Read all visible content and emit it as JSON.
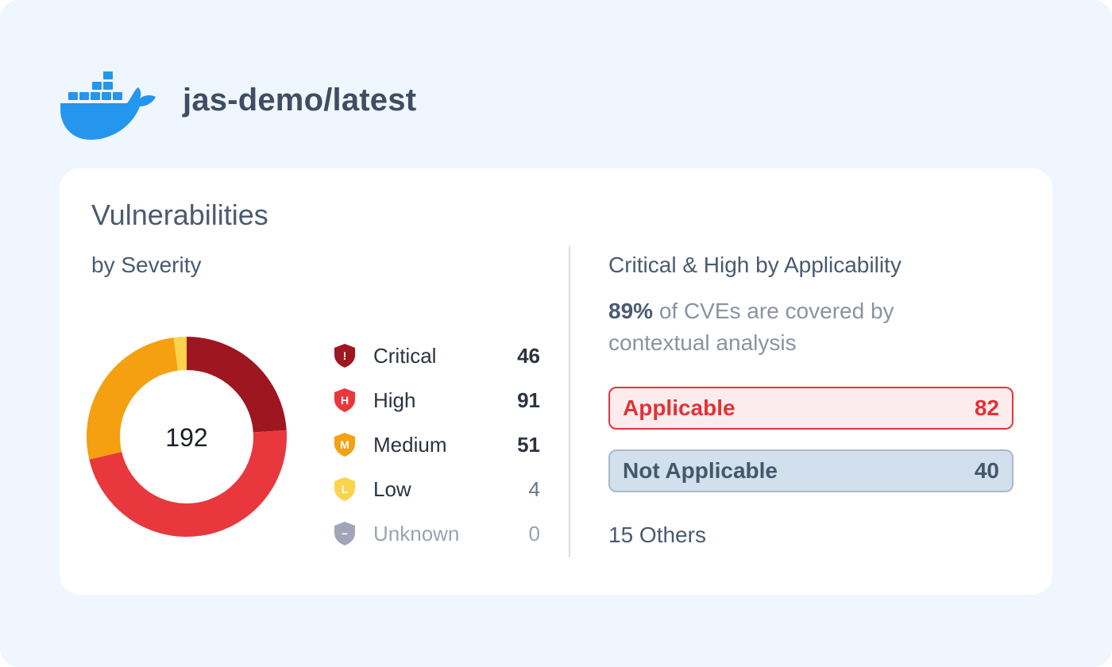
{
  "header": {
    "logo_icon": "docker-whale-icon",
    "repo_title": "jas-demo/latest"
  },
  "card": {
    "title": "Vulnerabilities",
    "left_subtitle": "by Severity",
    "total": "192",
    "severities": [
      {
        "label": "Critical",
        "count": "46",
        "color": "#9e1620",
        "icon": "shield-exclamation-icon",
        "glyph": "!"
      },
      {
        "label": "High",
        "count": "91",
        "color": "#e8383d",
        "icon": "shield-h-icon",
        "glyph": "H"
      },
      {
        "label": "Medium",
        "count": "51",
        "color": "#f4a011",
        "icon": "shield-m-icon",
        "glyph": "M"
      },
      {
        "label": "Low",
        "count": "4",
        "color": "#fbd44b",
        "icon": "shield-l-icon",
        "glyph": "L"
      },
      {
        "label": "Unknown",
        "count": "0",
        "color": "#a0a6b8",
        "icon": "shield-minus-icon",
        "glyph": "−"
      }
    ],
    "right_subtitle": "Critical &  High by Applicability",
    "coverage": {
      "percent": "89%",
      "text": " of CVEs are covered by contextual analysis"
    },
    "applicable": {
      "label": "Applicable",
      "count": "82"
    },
    "not_applicable": {
      "label": "Not Applicable",
      "count": "40"
    },
    "others": "15 Others"
  },
  "chart_data": {
    "type": "pie",
    "style": "donut",
    "total": 192,
    "categories": [
      "Critical",
      "High",
      "Medium",
      "Low",
      "Unknown"
    ],
    "values": [
      46,
      91,
      51,
      4,
      0
    ],
    "colors": [
      "#9e1620",
      "#e8383d",
      "#f4a011",
      "#fbd44b",
      "#a0a6b8"
    ]
  }
}
